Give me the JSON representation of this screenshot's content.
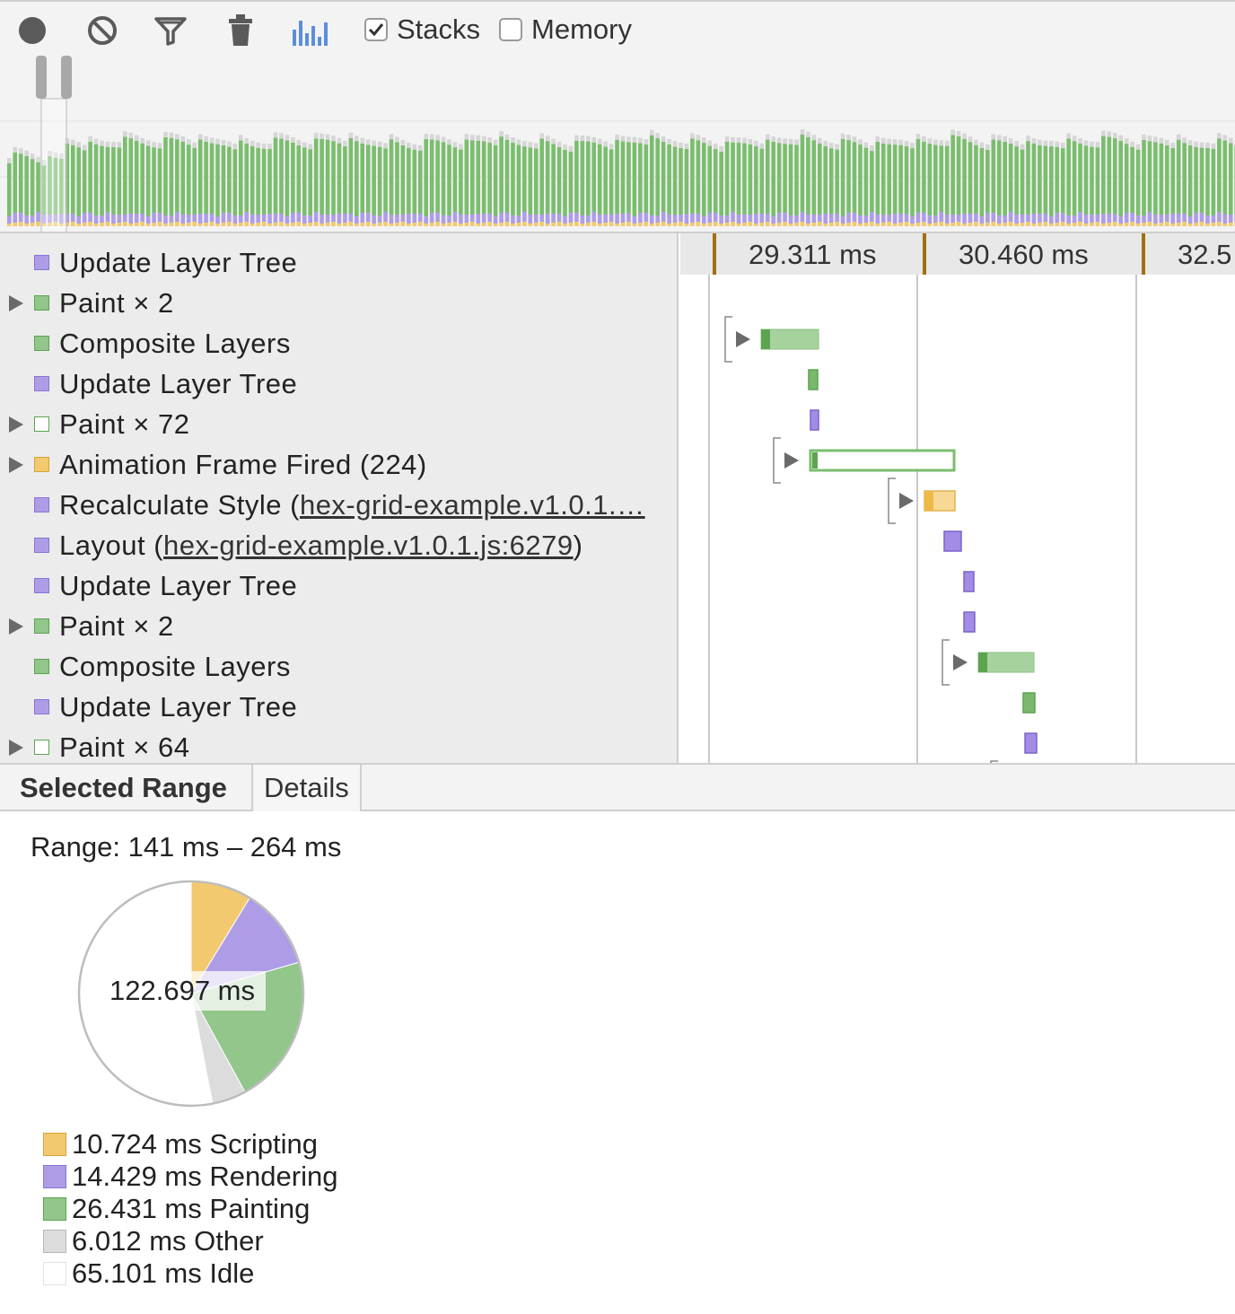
{
  "toolbar": {
    "record_icon": "record-icon",
    "clear_icon": "clear-icon",
    "filter_icon": "filter-icon",
    "trash_icon": "trash-icon",
    "chart_icon": "bar-chart-icon",
    "stacks_label": "Stacks",
    "stacks_checked": true,
    "memory_label": "Memory",
    "memory_checked": false
  },
  "tree": {
    "rows": [
      {
        "label": "Update Layer Tree",
        "category": "rendering",
        "expandable": false,
        "filled": true,
        "link": ""
      },
      {
        "label": "Paint × 2",
        "category": "painting",
        "expandable": true,
        "filled": true,
        "link": ""
      },
      {
        "label": "Composite Layers",
        "category": "painting",
        "expandable": false,
        "filled": true,
        "link": ""
      },
      {
        "label": "Update Layer Tree",
        "category": "rendering",
        "expandable": false,
        "filled": true,
        "link": ""
      },
      {
        "label": "Paint × 72",
        "category": "painting",
        "expandable": true,
        "filled": false,
        "link": ""
      },
      {
        "label": "Animation Frame Fired (224)",
        "category": "scripting",
        "expandable": true,
        "filled": true,
        "link": ""
      },
      {
        "label": "Recalculate Style (",
        "category": "rendering",
        "expandable": false,
        "filled": true,
        "link": "hex-grid-example.v1.0.1.…"
      },
      {
        "label": "Layout (",
        "category": "rendering",
        "expandable": false,
        "filled": true,
        "link": "hex-grid-example.v1.0.1.js:6279",
        "suffix": ")"
      },
      {
        "label": "Update Layer Tree",
        "category": "rendering",
        "expandable": false,
        "filled": true,
        "link": ""
      },
      {
        "label": "Paint × 2",
        "category": "painting",
        "expandable": true,
        "filled": true,
        "link": ""
      },
      {
        "label": "Composite Layers",
        "category": "painting",
        "expandable": false,
        "filled": true,
        "link": ""
      },
      {
        "label": "Update Layer Tree",
        "category": "rendering",
        "expandable": false,
        "filled": true,
        "link": ""
      },
      {
        "label": "Paint × 64",
        "category": "painting",
        "expandable": true,
        "filled": false,
        "link": ""
      }
    ]
  },
  "flame": {
    "ticks": [
      "29.311 ms",
      "30.460 ms",
      "32.5"
    ]
  },
  "tabs": {
    "selected_range": "Selected Range",
    "details": "Details"
  },
  "summary": {
    "range": "Range: 141 ms – 264 ms",
    "total": "122.697 ms",
    "legend": [
      {
        "value": "10.724 ms",
        "label": "Scripting",
        "color": "#f2c96e",
        "border": "#d6a53a",
        "ms": 10.724
      },
      {
        "value": "14.429 ms",
        "label": "Rendering",
        "color": "#ae9de6",
        "border": "#8a74d6",
        "ms": 14.429
      },
      {
        "value": "26.431 ms",
        "label": "Painting",
        "color": "#92c68b",
        "border": "#5da451",
        "ms": 26.431
      },
      {
        "value": "6.012 ms",
        "label": "Other",
        "color": "#dcdcdc",
        "border": "#b8b8b8",
        "ms": 6.012
      },
      {
        "value": "65.101 ms",
        "label": "Idle",
        "color": "#ffffff",
        "border": "#e0e0e0",
        "ms": 65.101
      }
    ]
  },
  "colors": {
    "scripting": "#f2c96e",
    "rendering": "#ae9de6",
    "painting": "#92c68b",
    "painting_dark": "#5da451",
    "other": "#dcdcdc"
  }
}
